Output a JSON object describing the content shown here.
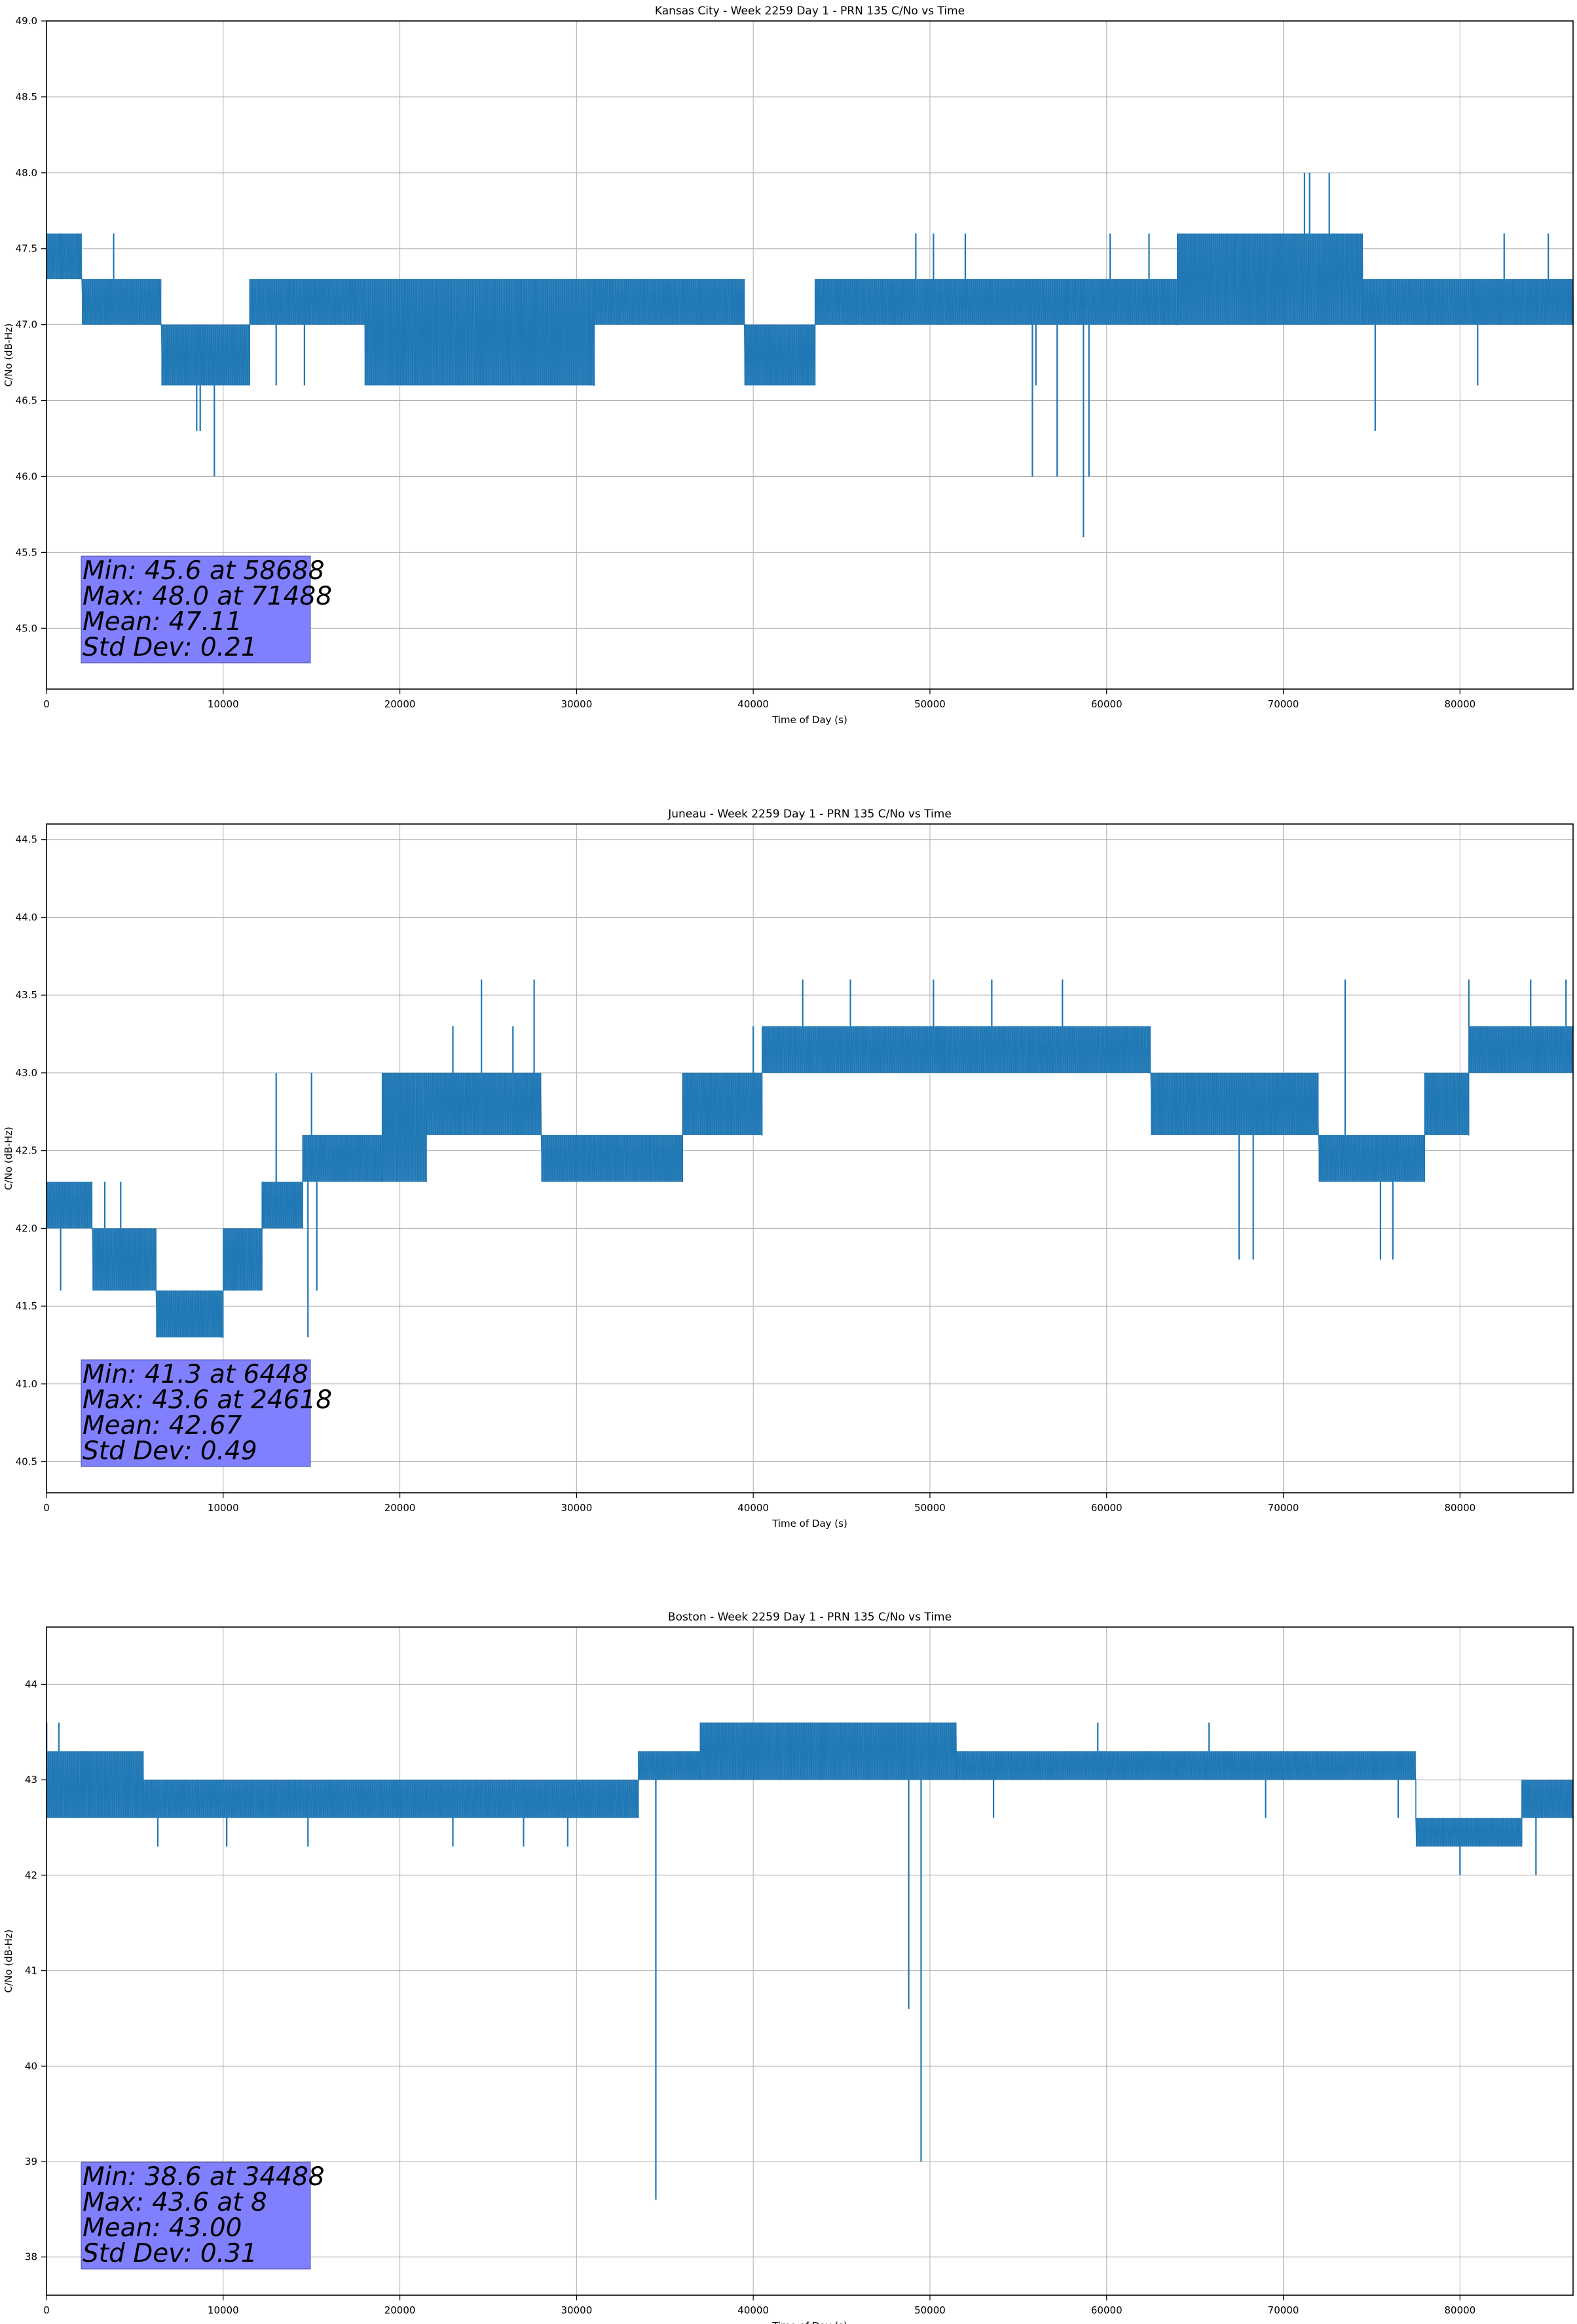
{
  "chart_data": [
    {
      "type": "line",
      "title": "Kansas City - Week 2259 Day 1 - PRN 135 C/No vs Time",
      "xlabel": "Time of Day (s)",
      "ylabel": "C/No (dB-Hz)",
      "xlim": [
        0,
        86400
      ],
      "ylim": [
        44.6,
        49.0
      ],
      "xticks": [
        0,
        10000,
        20000,
        30000,
        40000,
        50000,
        60000,
        70000,
        80000
      ],
      "yticks": [
        45.0,
        45.5,
        46.0,
        46.5,
        47.0,
        47.5,
        48.0,
        48.5,
        49.0
      ],
      "ytick_decimals": 1,
      "grid": true,
      "color": "#1f77b4",
      "quantization": 0.3,
      "segments": [
        {
          "x": [
            0,
            2000
          ],
          "lo": 47.3,
          "hi": 47.6
        },
        {
          "x": [
            2000,
            6500
          ],
          "lo": 47.0,
          "hi": 47.3
        },
        {
          "x": [
            6500,
            11500
          ],
          "lo": 46.6,
          "hi": 47.0
        },
        {
          "x": [
            11500,
            18000
          ],
          "lo": 47.0,
          "hi": 47.3
        },
        {
          "x": [
            18000,
            31000
          ],
          "lo": 46.6,
          "hi": 47.3
        },
        {
          "x": [
            31000,
            39500
          ],
          "lo": 47.0,
          "hi": 47.3
        },
        {
          "x": [
            39500,
            43500
          ],
          "lo": 46.6,
          "hi": 47.0
        },
        {
          "x": [
            43500,
            64000
          ],
          "lo": 47.0,
          "hi": 47.3
        },
        {
          "x": [
            64000,
            74500
          ],
          "lo": 47.0,
          "hi": 47.6
        },
        {
          "x": [
            74500,
            86400
          ],
          "lo": 47.0,
          "hi": 47.3
        }
      ],
      "spikes": [
        {
          "x": 800,
          "y": 47.6
        },
        {
          "x": 1800,
          "y": 47.6
        },
        {
          "x": 3800,
          "y": 47.6
        },
        {
          "x": 8500,
          "y": 46.3
        },
        {
          "x": 8700,
          "y": 46.3
        },
        {
          "x": 9500,
          "y": 46.0
        },
        {
          "x": 13000,
          "y": 46.6
        },
        {
          "x": 14600,
          "y": 46.6
        },
        {
          "x": 18300,
          "y": 46.6
        },
        {
          "x": 49200,
          "y": 47.6
        },
        {
          "x": 50200,
          "y": 47.6
        },
        {
          "x": 52000,
          "y": 47.6
        },
        {
          "x": 55800,
          "y": 46.0
        },
        {
          "x": 57200,
          "y": 46.0
        },
        {
          "x": 58688,
          "y": 45.6
        },
        {
          "x": 59000,
          "y": 46.0
        },
        {
          "x": 56000,
          "y": 46.6
        },
        {
          "x": 60200,
          "y": 47.6
        },
        {
          "x": 62400,
          "y": 47.6
        },
        {
          "x": 71200,
          "y": 48.0
        },
        {
          "x": 71488,
          "y": 48.0
        },
        {
          "x": 72600,
          "y": 48.0
        },
        {
          "x": 75200,
          "y": 46.3
        },
        {
          "x": 81000,
          "y": 46.6
        },
        {
          "x": 82500,
          "y": 47.6
        },
        {
          "x": 85000,
          "y": 47.6
        }
      ],
      "stats": {
        "line1": "Min: 45.6 at 58688",
        "line2": "Max: 48.0 at 71488",
        "line3": "Mean: 47.11",
        "line4": "Std Dev: 0.21"
      }
    },
    {
      "type": "line",
      "title": "Juneau - Week 2259 Day 1 - PRN 135 C/No vs Time",
      "xlabel": "Time of Day (s)",
      "ylabel": "C/No (dB-Hz)",
      "xlim": [
        0,
        86400
      ],
      "ylim": [
        40.3,
        44.6
      ],
      "xticks": [
        0,
        10000,
        20000,
        30000,
        40000,
        50000,
        60000,
        70000,
        80000
      ],
      "yticks": [
        40.5,
        41.0,
        41.5,
        42.0,
        42.5,
        43.0,
        43.5,
        44.0,
        44.5
      ],
      "ytick_decimals": 1,
      "grid": true,
      "color": "#1f77b4",
      "quantization": 0.3,
      "segments": [
        {
          "x": [
            0,
            2600
          ],
          "lo": 42.0,
          "hi": 42.3
        },
        {
          "x": [
            2600,
            6200
          ],
          "lo": 41.6,
          "hi": 42.0
        },
        {
          "x": [
            6200,
            10000
          ],
          "lo": 41.3,
          "hi": 41.6
        },
        {
          "x": [
            10000,
            12200
          ],
          "lo": 41.6,
          "hi": 42.0
        },
        {
          "x": [
            12200,
            14500
          ],
          "lo": 42.0,
          "hi": 42.3
        },
        {
          "x": [
            14500,
            19000
          ],
          "lo": 42.3,
          "hi": 42.6
        },
        {
          "x": [
            19000,
            21500
          ],
          "lo": 42.3,
          "hi": 43.0
        },
        {
          "x": [
            21500,
            28000
          ],
          "lo": 42.6,
          "hi": 43.0
        },
        {
          "x": [
            28000,
            36000
          ],
          "lo": 42.3,
          "hi": 42.6
        },
        {
          "x": [
            36000,
            40500
          ],
          "lo": 42.6,
          "hi": 43.0
        },
        {
          "x": [
            40500,
            62500
          ],
          "lo": 43.0,
          "hi": 43.3
        },
        {
          "x": [
            62500,
            72000
          ],
          "lo": 42.6,
          "hi": 43.0
        },
        {
          "x": [
            72000,
            78000
          ],
          "lo": 42.3,
          "hi": 42.6
        },
        {
          "x": [
            78000,
            80500
          ],
          "lo": 42.6,
          "hi": 43.0
        },
        {
          "x": [
            80500,
            86400
          ],
          "lo": 43.0,
          "hi": 43.3
        }
      ],
      "spikes": [
        {
          "x": 800,
          "y": 41.6
        },
        {
          "x": 3300,
          "y": 42.3
        },
        {
          "x": 4200,
          "y": 42.3
        },
        {
          "x": 6448,
          "y": 41.3
        },
        {
          "x": 13000,
          "y": 43.0
        },
        {
          "x": 14800,
          "y": 41.3
        },
        {
          "x": 15300,
          "y": 41.6
        },
        {
          "x": 15000,
          "y": 43.0
        },
        {
          "x": 23000,
          "y": 43.3
        },
        {
          "x": 24618,
          "y": 43.6
        },
        {
          "x": 26400,
          "y": 43.3
        },
        {
          "x": 27600,
          "y": 43.6
        },
        {
          "x": 30000,
          "y": 42.3
        },
        {
          "x": 40000,
          "y": 43.3
        },
        {
          "x": 42800,
          "y": 43.6
        },
        {
          "x": 45500,
          "y": 43.6
        },
        {
          "x": 50200,
          "y": 43.6
        },
        {
          "x": 53500,
          "y": 43.6
        },
        {
          "x": 57500,
          "y": 43.6
        },
        {
          "x": 67500,
          "y": 41.8
        },
        {
          "x": 68300,
          "y": 41.8
        },
        {
          "x": 73500,
          "y": 43.6
        },
        {
          "x": 75500,
          "y": 41.8
        },
        {
          "x": 76200,
          "y": 41.8
        },
        {
          "x": 80500,
          "y": 43.6
        },
        {
          "x": 84000,
          "y": 43.6
        },
        {
          "x": 86000,
          "y": 43.6
        }
      ],
      "stats": {
        "line1": "Min: 41.3 at 6448",
        "line2": "Max: 43.6 at 24618",
        "line3": "Mean: 42.67",
        "line4": "Std Dev: 0.49"
      }
    },
    {
      "type": "line",
      "title": "Boston - Week 2259 Day 1 - PRN 135 C/No vs Time",
      "xlabel": "Time of Day (s)",
      "ylabel": "C/No (dB-Hz)",
      "xlim": [
        0,
        86400
      ],
      "ylim": [
        37.6,
        44.6
      ],
      "xticks": [
        0,
        10000,
        20000,
        30000,
        40000,
        50000,
        60000,
        70000,
        80000
      ],
      "yticks": [
        38,
        39,
        40,
        41,
        42,
        43,
        44
      ],
      "ytick_decimals": 0,
      "grid": true,
      "color": "#1f77b4",
      "quantization": 0.3,
      "segments": [
        {
          "x": [
            0,
            5500
          ],
          "lo": 42.6,
          "hi": 43.3
        },
        {
          "x": [
            5500,
            33500
          ],
          "lo": 42.6,
          "hi": 43.0
        },
        {
          "x": [
            33500,
            37000
          ],
          "lo": 43.0,
          "hi": 43.3
        },
        {
          "x": [
            37000,
            51500
          ],
          "lo": 43.0,
          "hi": 43.6
        },
        {
          "x": [
            51500,
            77500
          ],
          "lo": 43.0,
          "hi": 43.3
        },
        {
          "x": [
            77500,
            83500
          ],
          "lo": 42.3,
          "hi": 42.6
        },
        {
          "x": [
            83500,
            86400
          ],
          "lo": 42.6,
          "hi": 43.0
        }
      ],
      "spikes": [
        {
          "x": 8,
          "y": 43.6
        },
        {
          "x": 700,
          "y": 43.6
        },
        {
          "x": 6300,
          "y": 42.3
        },
        {
          "x": 10200,
          "y": 42.3
        },
        {
          "x": 14800,
          "y": 42.3
        },
        {
          "x": 23000,
          "y": 42.3
        },
        {
          "x": 27000,
          "y": 42.3
        },
        {
          "x": 29500,
          "y": 42.3
        },
        {
          "x": 34488,
          "y": 38.6
        },
        {
          "x": 48800,
          "y": 40.6
        },
        {
          "x": 49500,
          "y": 39.0
        },
        {
          "x": 53600,
          "y": 42.6
        },
        {
          "x": 59500,
          "y": 43.6
        },
        {
          "x": 65800,
          "y": 43.6
        },
        {
          "x": 69000,
          "y": 42.6
        },
        {
          "x": 76500,
          "y": 42.6
        },
        {
          "x": 80000,
          "y": 42.0
        },
        {
          "x": 81500,
          "y": 42.3
        },
        {
          "x": 84300,
          "y": 42.0
        }
      ],
      "stats": {
        "line1": "Min: 38.6 at 34488",
        "line2": "Max: 43.6 at 8",
        "line3": "Mean: 43.00",
        "line4": "Std Dev: 0.31"
      }
    }
  ]
}
